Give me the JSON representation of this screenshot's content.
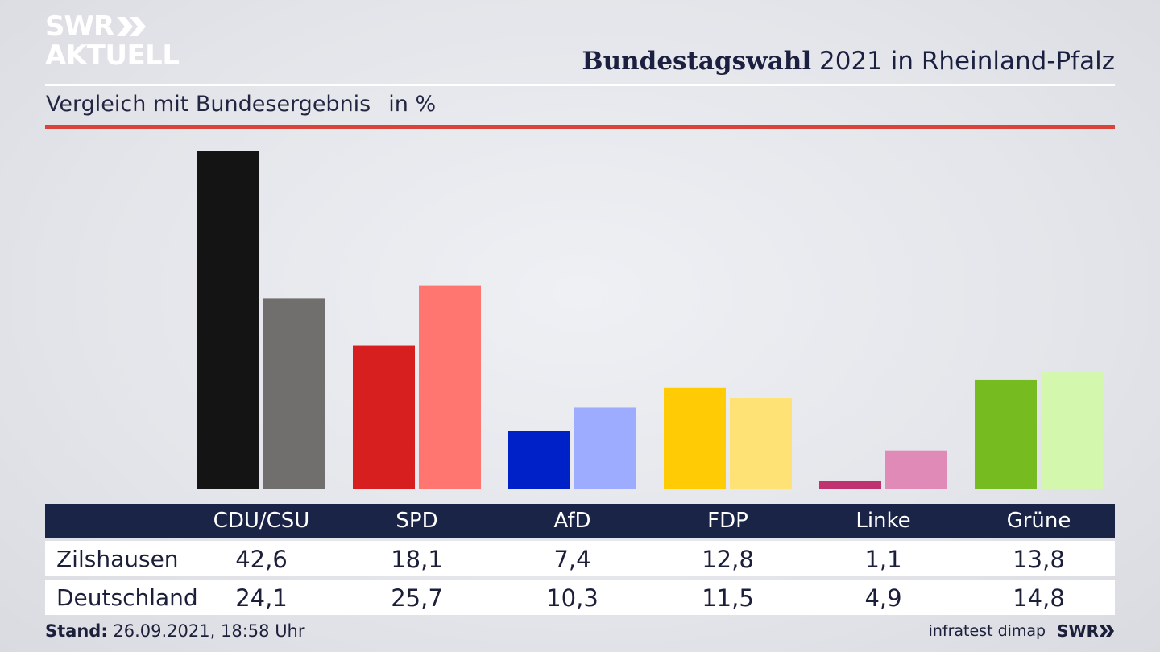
{
  "brand": {
    "logo_line1": "SWR",
    "logo_line2": "AKTUELL",
    "footer_logo": "SWR"
  },
  "header": {
    "title_bold": "Bundestagswahl",
    "title_rest": "2021 in Rheinland-Pfalz",
    "subtitle": "Vergleich mit Bundesergebnis",
    "unit": "in %"
  },
  "colors": {
    "primary": [
      "#141414",
      "#d71f1f",
      "#0020c8",
      "#ffcb05",
      "#c0326f",
      "#76bb20"
    ],
    "secondary": [
      "#706f6d",
      "#ff7570",
      "#9eacff",
      "#ffe275",
      "#e08ab8",
      "#d4f7ae"
    ],
    "accent_rule": "#d9433a",
    "table_header": "#1a2446"
  },
  "chart_data": {
    "type": "bar",
    "categories": [
      "CDU/CSU",
      "SPD",
      "AfD",
      "FDP",
      "Linke",
      "Grüne"
    ],
    "series": [
      {
        "name": "Zilshausen",
        "values": [
          42.6,
          18.1,
          7.4,
          12.8,
          1.1,
          13.8
        ],
        "labels": [
          "42,6",
          "18,1",
          "7,4",
          "12,8",
          "1,1",
          "13,8"
        ]
      },
      {
        "name": "Deutschland",
        "values": [
          24.1,
          25.7,
          10.3,
          11.5,
          4.9,
          14.8
        ],
        "labels": [
          "24,1",
          "25,7",
          "10,3",
          "11,5",
          "4,9",
          "14,8"
        ]
      }
    ],
    "ylim": [
      0,
      42.6
    ],
    "grid": false
  },
  "footer": {
    "stand_label": "Stand:",
    "stand_value": "26.09.2021, 18:58 Uhr",
    "source": "infratest dimap"
  }
}
